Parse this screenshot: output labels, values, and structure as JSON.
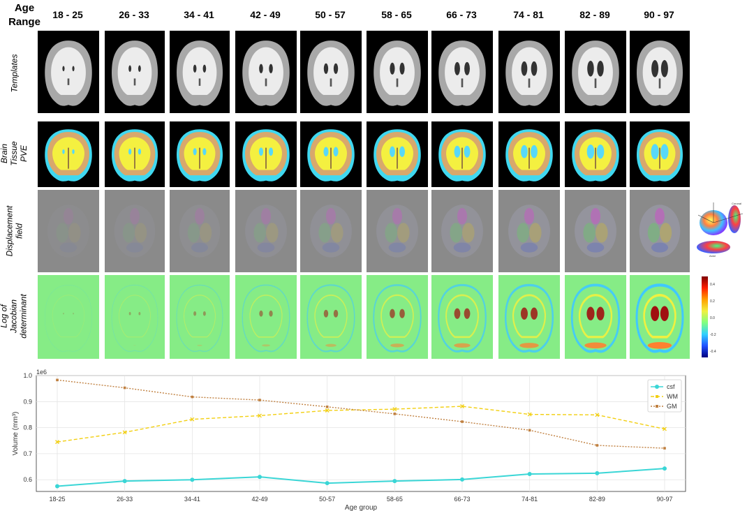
{
  "header": {
    "age_range_label": "Age\nRange"
  },
  "columns": [
    "18 - 25",
    "26 - 33",
    "34 - 41",
    "42 - 49",
    "50 - 57",
    "58 - 65",
    "66 - 73",
    "74 - 81",
    "82 - 89",
    "90 - 97"
  ],
  "rows": [
    {
      "label": "Templates"
    },
    {
      "label": "Brain Tissue\nPVE"
    },
    {
      "label": "Displacement\nfield"
    },
    {
      "label": "Log of\nJacobian\ndeterminant"
    }
  ],
  "colorbar_ticks": [
    "0.4",
    "0.2",
    "0.0",
    "-0.2",
    "-0.4"
  ],
  "sphere_labels": {
    "coronal": "Coronal",
    "axial": "Axial"
  },
  "chart_data": {
    "type": "line",
    "categories": [
      "18-25",
      "26-33",
      "34-41",
      "42-49",
      "50-57",
      "58-65",
      "66-73",
      "74-81",
      "82-89",
      "90-97"
    ],
    "series": [
      {
        "name": "csf",
        "color": "#3ad6d6",
        "values": [
          0.575,
          0.595,
          0.6,
          0.611,
          0.587,
          0.595,
          0.601,
          0.622,
          0.625,
          0.643
        ]
      },
      {
        "name": "WM",
        "color": "#f2cf10",
        "values": [
          0.745,
          0.782,
          0.832,
          0.846,
          0.866,
          0.871,
          0.882,
          0.851,
          0.849,
          0.795
        ]
      },
      {
        "name": "GM",
        "color": "#c08040",
        "values": [
          0.983,
          0.953,
          0.918,
          0.906,
          0.88,
          0.853,
          0.823,
          0.79,
          0.732,
          0.721
        ]
      }
    ],
    "xlabel": "Age group",
    "ylabel": "Volume (mm³)",
    "scale_label": "1e6",
    "ylim": [
      0.555,
      1.0
    ],
    "yticks": [
      "0.6",
      "0.7",
      "0.8",
      "0.9",
      "1.0"
    ],
    "ytick_values": [
      0.6,
      0.7,
      0.8,
      0.9,
      1.0
    ],
    "grid": true,
    "legend_position": "top-right"
  }
}
